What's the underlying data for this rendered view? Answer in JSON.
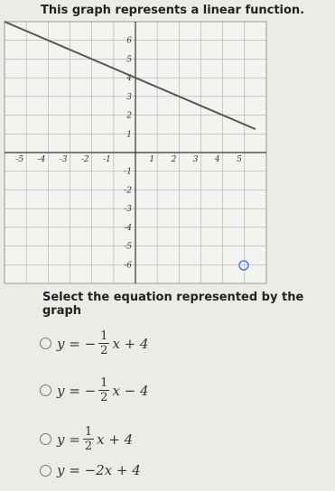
{
  "prompt": "This graph represents a linear function.",
  "instruction": "Select the equation represented by the graph",
  "graph": {
    "xlim": [
      -6,
      6
    ],
    "ylim": [
      -7,
      7
    ],
    "xticks": [
      -5,
      -4,
      -3,
      -2,
      -1,
      1,
      2,
      3,
      4,
      5
    ],
    "yticks": [
      6,
      5,
      4,
      3,
      2,
      1,
      -1,
      -2,
      -3,
      -4,
      -5,
      -6
    ],
    "line": {
      "x": [
        -6,
        5.5
      ],
      "y": [
        7,
        1.25
      ]
    }
  },
  "options": [
    {
      "prefix": "y = −",
      "num": "1",
      "den": "2",
      "suffix": "x + 4"
    },
    {
      "prefix": "y = −",
      "num": "1",
      "den": "2",
      "suffix": "x − 4"
    },
    {
      "prefix": "y =",
      "num": "1",
      "den": "2",
      "suffix": "x + 4"
    },
    {
      "text": "y = −2x + 4"
    }
  ]
}
